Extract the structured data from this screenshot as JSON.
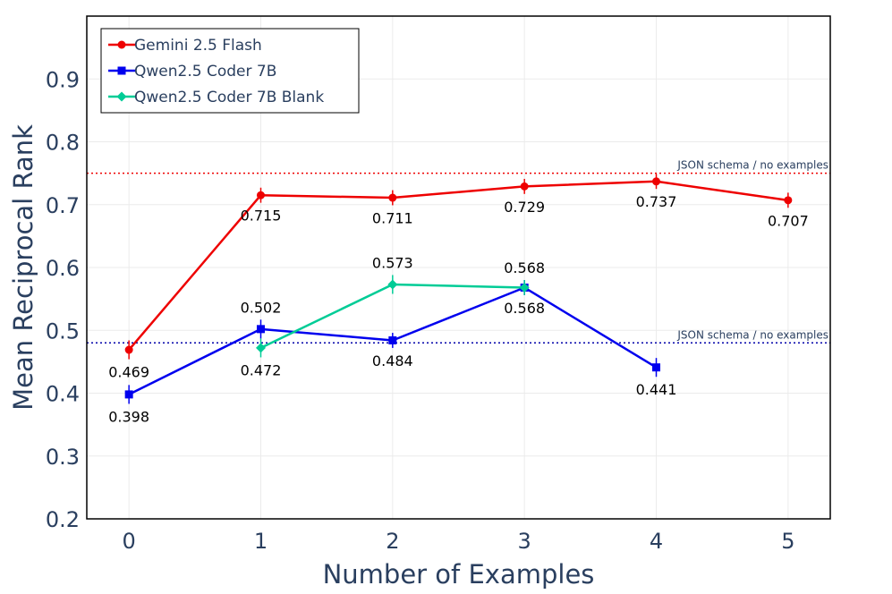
{
  "chart_data": {
    "type": "line",
    "title": "",
    "xlabel": "Number of Examples",
    "ylabel": "Mean Reciprocal Rank",
    "xlim": [
      -0.32,
      5.32
    ],
    "ylim": [
      0.2,
      1.0
    ],
    "x_ticks": [
      0,
      1,
      2,
      3,
      4,
      5
    ],
    "y_ticks": [
      0.2,
      0.3,
      0.4,
      0.5,
      0.6,
      0.7,
      0.8,
      0.9
    ],
    "grid": true,
    "legend_position": "top-left",
    "series": [
      {
        "name": "Gemini 2.5 Flash",
        "color": "#ee0000",
        "marker": "circle",
        "x": [
          0,
          1,
          2,
          3,
          4,
          5
        ],
        "y": [
          0.469,
          0.715,
          0.711,
          0.729,
          0.737,
          0.707
        ],
        "labels": [
          "0.469",
          "0.715",
          "0.711",
          "0.729",
          "0.737",
          "0.707"
        ],
        "label_position": [
          "below",
          "below",
          "below",
          "below",
          "below",
          "below"
        ],
        "error": [
          0.015,
          0.012,
          0.012,
          0.012,
          0.012,
          0.012
        ]
      },
      {
        "name": "Qwen2.5 Coder 7B",
        "color": "#0000ee",
        "marker": "square",
        "x": [
          0,
          1,
          2,
          3,
          4
        ],
        "y": [
          0.398,
          0.502,
          0.484,
          0.568,
          0.441
        ],
        "labels": [
          "0.398",
          "0.502",
          "0.484",
          "0.568",
          "0.441"
        ],
        "label_position": [
          "below",
          "above",
          "below",
          "below",
          "below"
        ],
        "error": [
          0.015,
          0.015,
          0.012,
          0.012,
          0.015
        ]
      },
      {
        "name": "Qwen2.5 Coder 7B Blank",
        "color": "#00cc96",
        "marker": "diamond",
        "x": [
          1,
          2,
          3
        ],
        "y": [
          0.472,
          0.573,
          0.568
        ],
        "labels": [
          "0.472",
          "0.573",
          "0.568"
        ],
        "label_position": [
          "below",
          "above",
          "above"
        ],
        "error": [
          0.015,
          0.015,
          0.012
        ]
      }
    ],
    "reference_lines": [
      {
        "y": 0.75,
        "color": "#ee0000",
        "style": "dotted",
        "label": "JSON schema / no examples"
      },
      {
        "y": 0.48,
        "color": "#0000aa",
        "style": "dotted",
        "label": "JSON schema / no examples"
      }
    ]
  }
}
